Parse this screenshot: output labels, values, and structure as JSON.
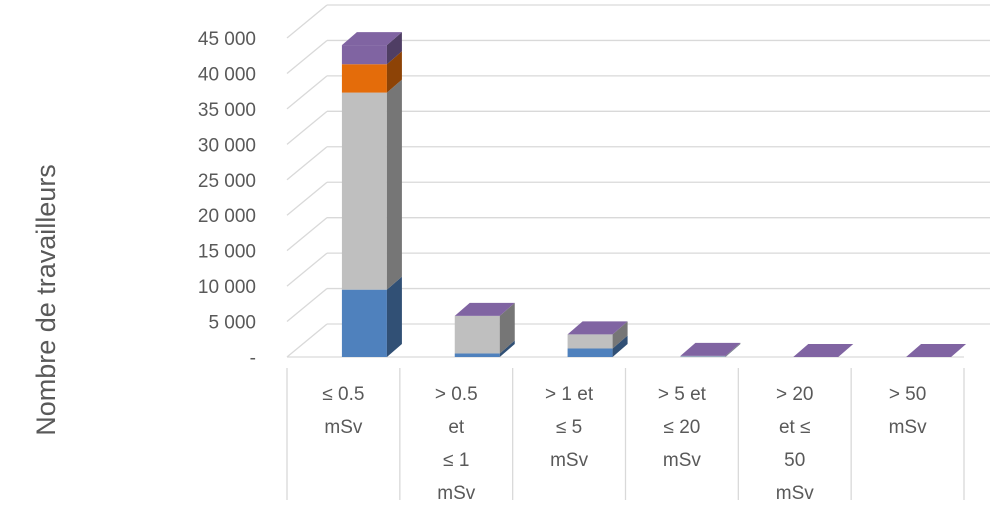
{
  "chart_data": {
    "type": "bar",
    "stacked": true,
    "three_d": true,
    "ylabel": "Nombre de travailleurs",
    "ylim": [
      0,
      45000
    ],
    "y_ticks": [
      "-",
      "5 000",
      "10 000",
      "15 000",
      "20 000",
      "25 000",
      "30 000",
      "35 000",
      "40 000",
      "45 000"
    ],
    "grid": true,
    "legend": "none",
    "categories": [
      [
        "≤ 0.5",
        "mSv"
      ],
      [
        "> 0.5",
        "et",
        "≤ 1",
        "mSv"
      ],
      [
        "> 1 et",
        "≤ 5",
        "mSv"
      ],
      [
        "> 5 et",
        "≤ 20",
        "mSv"
      ],
      [
        "> 20",
        "et ≤",
        "50",
        "mSv"
      ],
      [
        "> 50",
        "mSv"
      ]
    ],
    "series": [
      {
        "color": "#4f81bd",
        "values": [
          9500,
          500,
          1200,
          60,
          0,
          0
        ]
      },
      {
        "color": "#bfbfbf",
        "values": [
          27800,
          5300,
          2000,
          100,
          0,
          0
        ]
      },
      {
        "color": "#e46c0a",
        "values": [
          4000,
          0,
          0,
          0,
          0,
          0
        ]
      },
      {
        "color": "#8064a2",
        "values": [
          2700,
          0,
          0,
          0,
          0,
          0
        ]
      }
    ]
  }
}
